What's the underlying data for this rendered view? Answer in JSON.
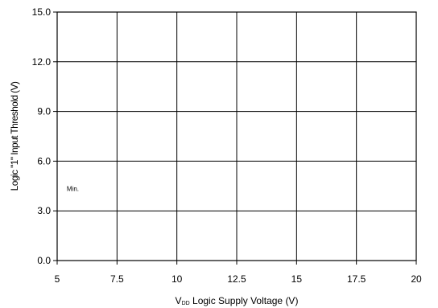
{
  "chart_data": {
    "type": "line",
    "title": "",
    "xlabel": {
      "prefix": "V",
      "subscript": "DD",
      "suffix": " Logic Supply Voltage (V)"
    },
    "ylabel": "Logic \"1\" Input Threshold (V)",
    "xlim": [
      5,
      20
    ],
    "ylim": [
      0,
      15
    ],
    "x_ticks": [
      5,
      7.5,
      10,
      12.5,
      15,
      17.5,
      20
    ],
    "x_tick_labels": [
      "5",
      "7.5",
      "10",
      "12.5",
      "15",
      "17.5",
      "20"
    ],
    "y_ticks": [
      0,
      3,
      6,
      9,
      12,
      15
    ],
    "y_tick_labels": [
      "0.0",
      "3.0",
      "6.0",
      "9.0",
      "12.0",
      "15.0"
    ],
    "grid": true,
    "series": [],
    "annotations": [
      {
        "text": "Min.",
        "x": 5.4,
        "y": 4.2
      }
    ]
  }
}
